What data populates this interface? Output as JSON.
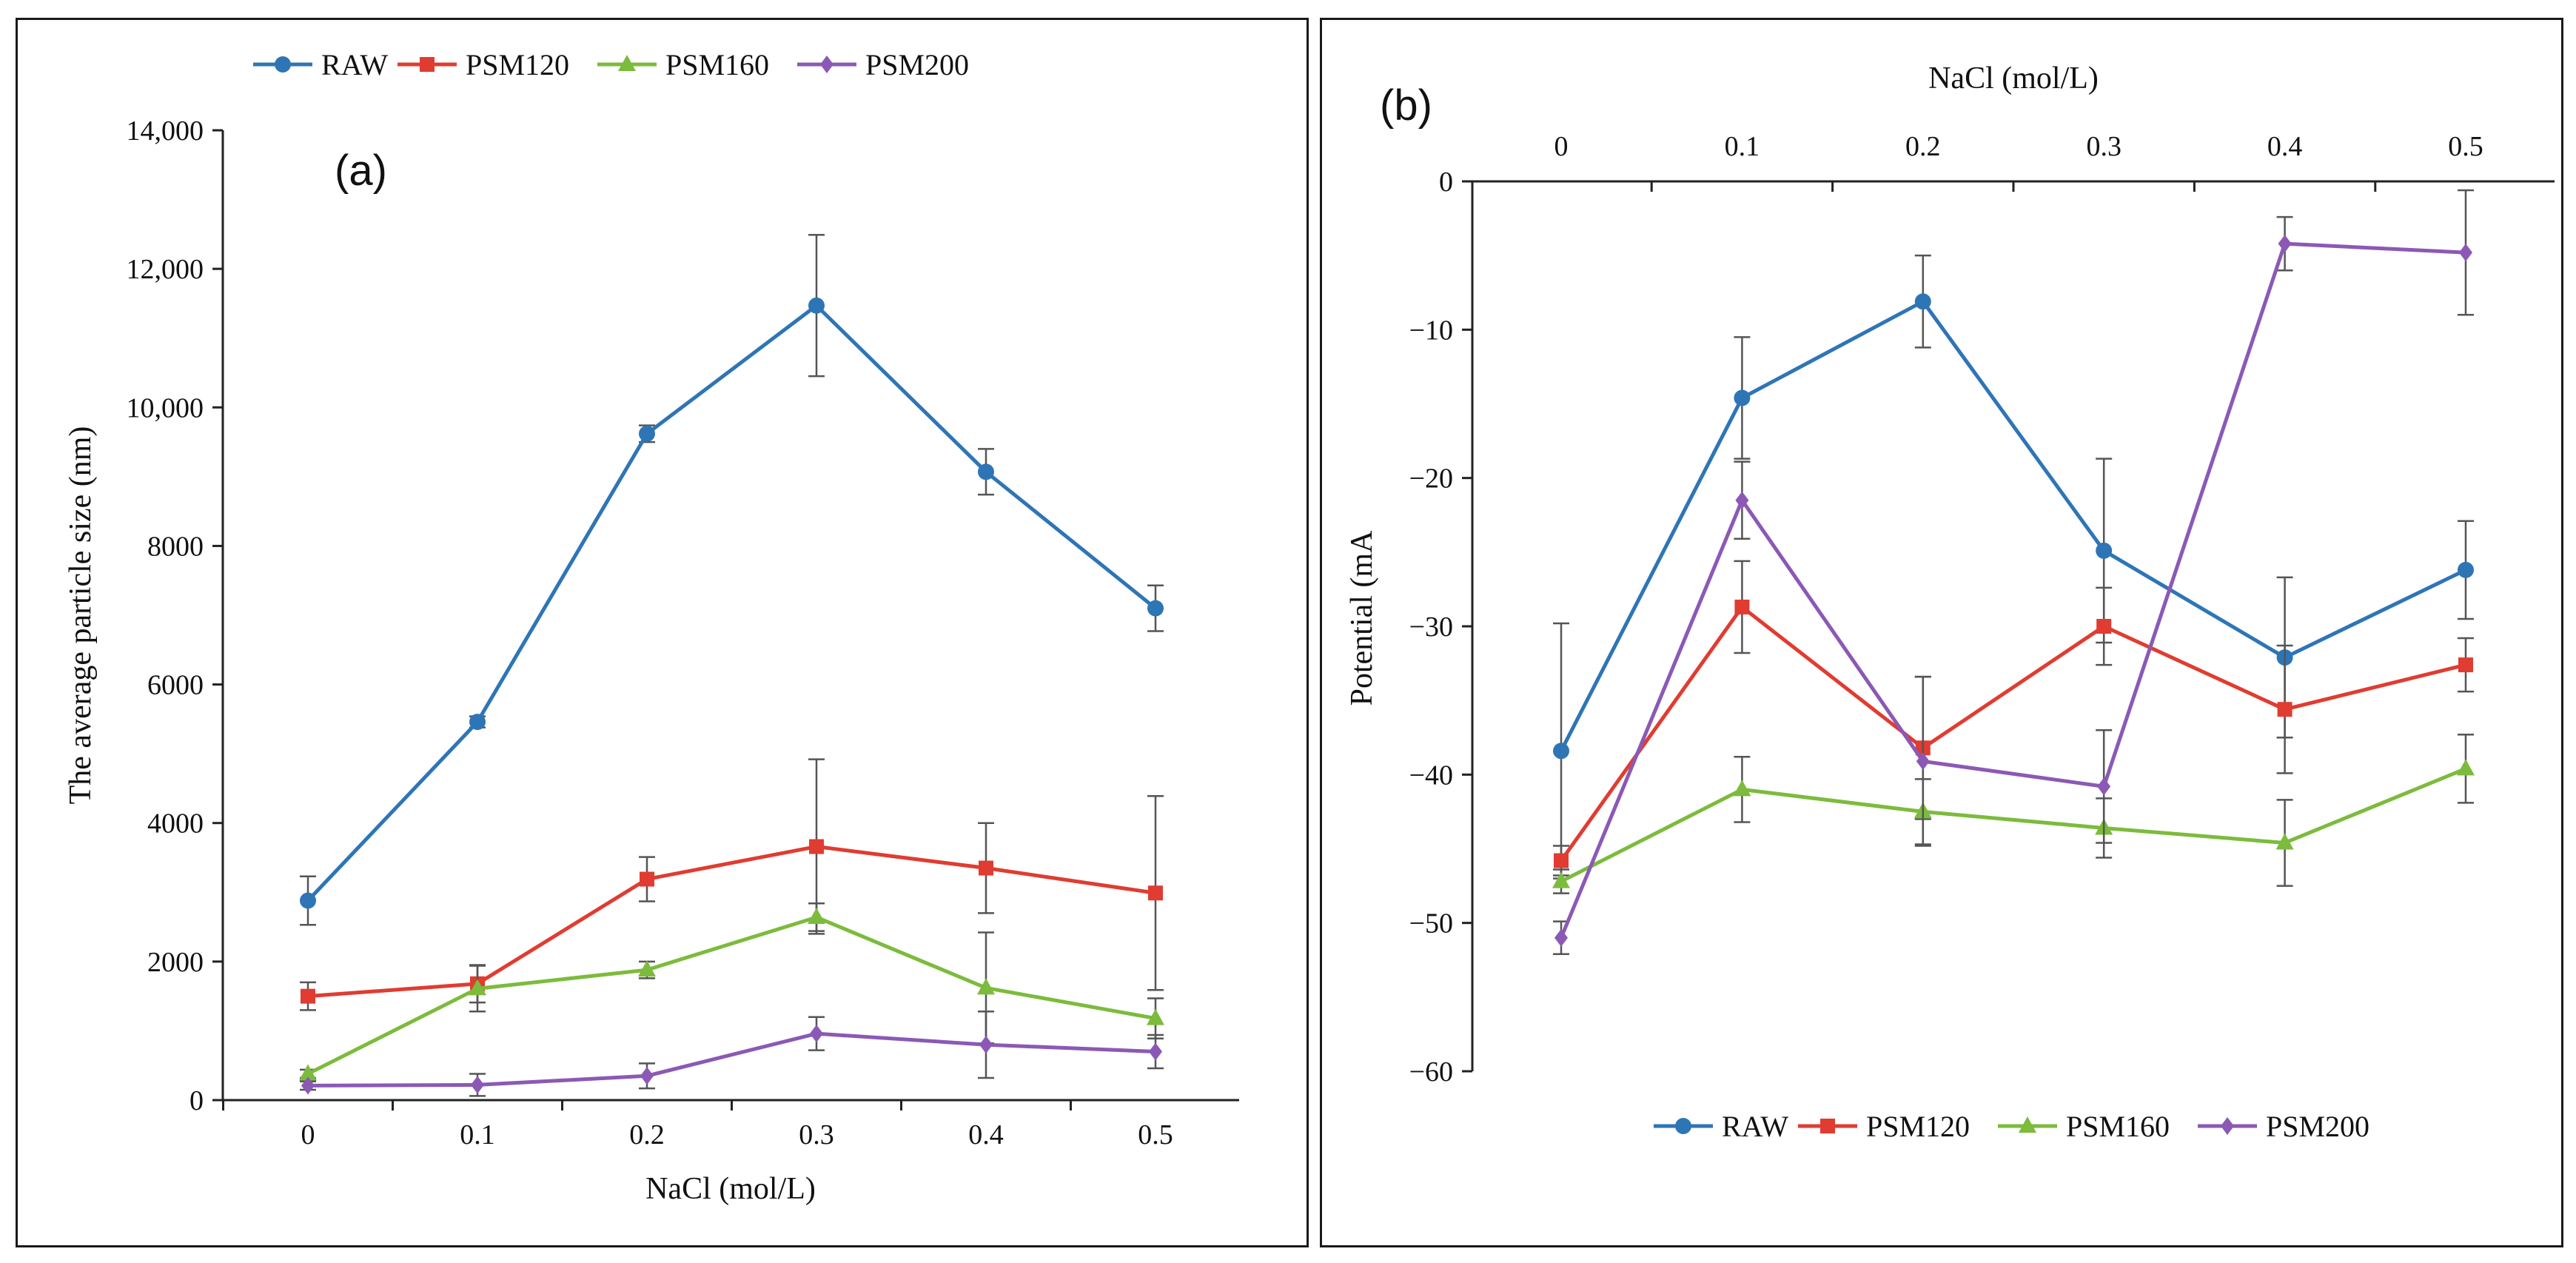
{
  "chart_data": [
    {
      "type": "line",
      "panel_label": "(a)",
      "xlabel": "NaCl (mol/L)",
      "ylabel": "The average particle size (nm)",
      "categories": [
        "0",
        "0.1",
        "0.2",
        "0.3",
        "0.4",
        "0.5"
      ],
      "ylim": [
        0,
        14000
      ],
      "yticks": [
        0,
        2000,
        4000,
        6000,
        8000,
        10000,
        12000,
        14000
      ],
      "ytick_labels": [
        "0",
        "2000",
        "4000",
        "6000",
        "8000",
        "10,000",
        "12,000",
        "14,000"
      ],
      "legend_position": "top",
      "series": [
        {
          "name": "RAW",
          "color": "#2E75B6",
          "marker": "circle",
          "values": [
            2880,
            5460,
            9620,
            11470,
            9070,
            7100
          ],
          "errors": [
            350,
            80,
            120,
            1020,
            330,
            330
          ]
        },
        {
          "name": "PSM120",
          "color": "#E03C31",
          "marker": "square",
          "values": [
            1500,
            1680,
            3190,
            3660,
            3350,
            2990
          ],
          "errors": [
            200,
            270,
            320,
            1260,
            650,
            1400
          ]
        },
        {
          "name": "PSM160",
          "color": "#7CBB3C",
          "marker": "triangle",
          "values": [
            380,
            1610,
            1880,
            2640,
            1620,
            1180
          ],
          "errors": [
            60,
            330,
            120,
            200,
            800,
            290
          ]
        },
        {
          "name": "PSM200",
          "color": "#8B59B5",
          "marker": "diamond",
          "values": [
            210,
            220,
            350,
            960,
            800,
            700
          ],
          "errors": [
            60,
            160,
            180,
            240,
            480,
            240
          ]
        }
      ]
    },
    {
      "type": "line",
      "panel_label": "(b)",
      "xlabel": "NaCl (mol/L)",
      "xaxis_position": "top",
      "ylabel": "Potential (mA",
      "categories": [
        "0",
        "0.1",
        "0.2",
        "0.3",
        "0.4",
        "0.5"
      ],
      "ylim": [
        -60,
        0
      ],
      "yticks": [
        0,
        -10,
        -20,
        -30,
        -40,
        -50,
        -60
      ],
      "ytick_labels": [
        "0",
        "−10",
        "−20",
        "−30",
        "−40",
        "−50",
        "−60"
      ],
      "legend_position": "bottom",
      "series": [
        {
          "name": "RAW",
          "color": "#2E75B6",
          "marker": "circle",
          "values": [
            -38.4,
            -14.6,
            -8.1,
            -24.9,
            -32.1,
            -26.2
          ],
          "errors": [
            8.6,
            4.1,
            3.1,
            6.2,
            5.4,
            3.3
          ]
        },
        {
          "name": "PSM120",
          "color": "#E03C31",
          "marker": "square",
          "values": [
            -45.8,
            -28.7,
            -38.2,
            -30.0,
            -35.6,
            -32.6
          ],
          "errors": [
            1.0,
            3.1,
            4.8,
            2.6,
            4.3,
            1.8
          ]
        },
        {
          "name": "PSM160",
          "color": "#7CBB3C",
          "marker": "triangle",
          "values": [
            -47.2,
            -41.0,
            -42.5,
            -43.6,
            -44.6,
            -39.6
          ],
          "errors": [
            0.8,
            2.2,
            2.2,
            2.0,
            2.9,
            2.3
          ]
        },
        {
          "name": "PSM200",
          "color": "#8B59B5",
          "marker": "diamond",
          "values": [
            -51.0,
            -21.5,
            -39.1,
            -40.8,
            -4.2,
            -4.8
          ],
          "errors": [
            1.1,
            2.6,
            5.7,
            3.8,
            1.8,
            4.2
          ]
        }
      ]
    }
  ]
}
